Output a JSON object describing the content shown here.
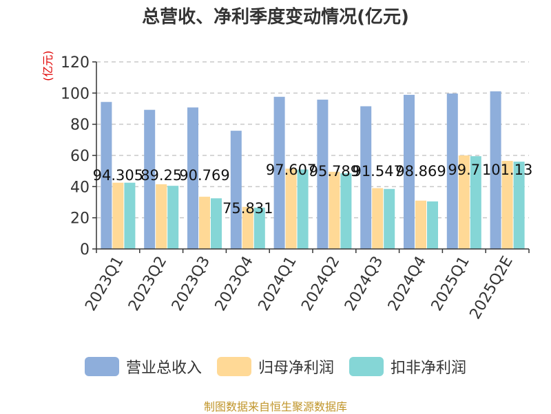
{
  "chart_data": {
    "type": "bar",
    "title": "总营收、净利季度变动情况(亿元)",
    "ylabel": "(亿元)",
    "ylim": [
      0,
      120
    ],
    "yticks": [
      0,
      20,
      40,
      60,
      80,
      100,
      120
    ],
    "categories": [
      "2023Q1",
      "2023Q2",
      "2023Q3",
      "2023Q4",
      "2024Q1",
      "2024Q2",
      "2024Q3",
      "2024Q4",
      "2025Q1",
      "2025Q2E"
    ],
    "series": [
      {
        "name": "营业总收入",
        "color": "#8eaedb",
        "values": [
          94.305,
          89.25,
          90.769,
          75.831,
          97.607,
          95.789,
          91.547,
          98.869,
          99.7,
          101.13
        ],
        "labels": [
          "94.305",
          "89.25",
          "90.769",
          "75.831",
          "97.607",
          "95.789",
          "91.547",
          "98.869",
          "99.7",
          "101.13"
        ]
      },
      {
        "name": "归母净利润",
        "color": "#ffd996",
        "values": [
          42.5,
          41.5,
          33.5,
          27.0,
          51.5,
          49.5,
          39.0,
          31.0,
          60.0,
          56.5
        ]
      },
      {
        "name": "扣非净利润",
        "color": "#85d6d6",
        "values": [
          42.5,
          40.5,
          32.5,
          26.5,
          51.0,
          48.5,
          38.5,
          30.5,
          59.5,
          56.0
        ]
      }
    ],
    "grid": true,
    "legend_position": "bottom"
  },
  "footer": {
    "source": "制图数据来自恒生聚源数据库"
  }
}
